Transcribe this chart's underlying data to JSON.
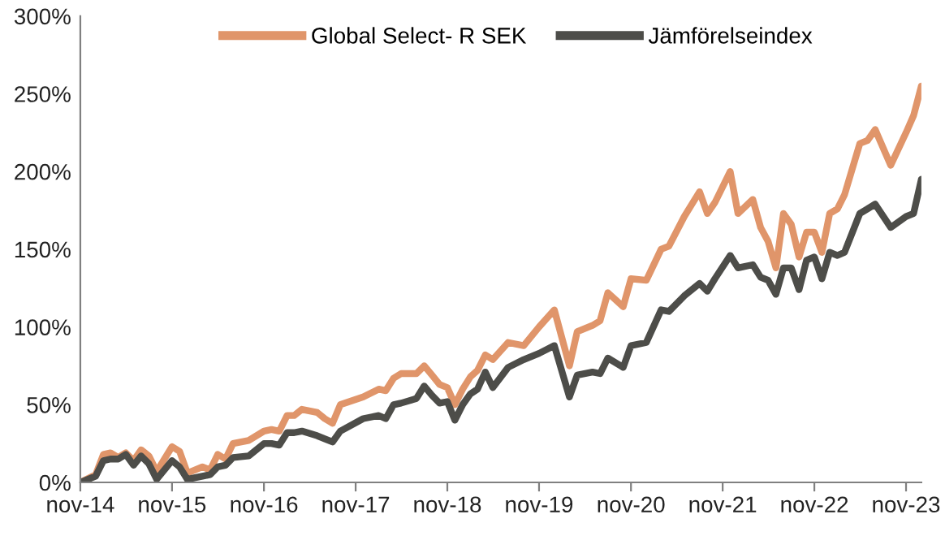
{
  "chart_data": {
    "type": "line",
    "x": [
      "2014-11",
      "2015-01",
      "2015-02",
      "2015-03",
      "2015-04",
      "2015-05",
      "2015-06",
      "2015-07",
      "2015-08",
      "2015-09",
      "2015-11",
      "2015-12",
      "2016-01",
      "2016-03",
      "2016-04",
      "2016-05",
      "2016-06",
      "2016-07",
      "2016-09",
      "2016-11",
      "2016-12",
      "2017-01",
      "2017-02",
      "2017-03",
      "2017-04",
      "2017-06",
      "2017-07",
      "2017-08",
      "2017-09",
      "2017-12",
      "2018-02",
      "2018-03",
      "2018-04",
      "2018-05",
      "2018-07",
      "2018-08",
      "2018-09",
      "2018-10",
      "2018-11",
      "2018-12",
      "2019-01",
      "2019-02",
      "2019-03",
      "2019-04",
      "2019-05",
      "2019-07",
      "2019-09",
      "2019-11",
      "2020-01",
      "2020-03",
      "2020-04",
      "2020-06",
      "2020-07",
      "2020-08",
      "2020-10",
      "2020-11",
      "2021-01",
      "2021-03",
      "2021-04",
      "2021-06",
      "2021-08",
      "2021-09",
      "2021-10",
      "2021-12",
      "2022-01",
      "2022-03",
      "2022-04",
      "2022-05",
      "2022-06",
      "2022-07",
      "2022-08",
      "2022-09",
      "2022-10",
      "2022-11",
      "2022-12",
      "2023-01",
      "2023-02",
      "2023-03",
      "2023-05",
      "2023-06",
      "2023-07",
      "2023-09",
      "2023-11",
      "2023-12",
      "2024-01"
    ],
    "series": [
      {
        "name": "Global Select- R SEK",
        "color": "#e0956a",
        "values": [
          0,
          5,
          18,
          19,
          16,
          19,
          14,
          21,
          17,
          7,
          23,
          20,
          6,
          10,
          8,
          18,
          15,
          25,
          27,
          33,
          34,
          33,
          43,
          43,
          47,
          45,
          41,
          38,
          50,
          55,
          60,
          59,
          67,
          70,
          70,
          75,
          69,
          63,
          61,
          50,
          60,
          68,
          72,
          82,
          79,
          90,
          88,
          100,
          111,
          75,
          97,
          101,
          104,
          122,
          113,
          131,
          130,
          150,
          152,
          171,
          187,
          173,
          180,
          200,
          173,
          182,
          164,
          155,
          138,
          173,
          166,
          145,
          161,
          161,
          148,
          173,
          176,
          185,
          218,
          220,
          227,
          204,
          225,
          236,
          255
        ]
      },
      {
        "name": "Jämförelseindex",
        "color": "#4d4d49",
        "values": [
          0,
          4,
          14,
          15,
          15,
          18,
          11,
          17,
          12,
          2,
          14,
          10,
          2,
          4,
          5,
          10,
          11,
          16,
          17,
          25,
          25,
          24,
          32,
          32,
          33,
          30,
          28,
          26,
          33,
          41,
          43,
          41,
          50,
          51,
          54,
          62,
          56,
          51,
          52,
          40,
          50,
          57,
          60,
          71,
          61,
          74,
          79,
          83,
          88,
          55,
          69,
          71,
          70,
          80,
          74,
          88,
          90,
          111,
          110,
          120,
          128,
          123,
          131,
          146,
          138,
          140,
          132,
          130,
          121,
          138,
          138,
          124,
          143,
          145,
          131,
          148,
          146,
          148,
          173,
          176,
          179,
          164,
          171,
          173,
          195
        ]
      }
    ],
    "xlim": [
      "2014-11",
      "2024-01"
    ],
    "xticks": [
      {
        "value": "2014-11",
        "label": "nov-14"
      },
      {
        "value": "2015-11",
        "label": "nov-15"
      },
      {
        "value": "2016-11",
        "label": "nov-16"
      },
      {
        "value": "2017-11",
        "label": "nov-17"
      },
      {
        "value": "2018-11",
        "label": "nov-18"
      },
      {
        "value": "2019-11",
        "label": "nov-19"
      },
      {
        "value": "2020-11",
        "label": "nov-20"
      },
      {
        "value": "2021-11",
        "label": "nov-21"
      },
      {
        "value": "2022-11",
        "label": "nov-22"
      },
      {
        "value": "2023-11",
        "label": "nov-23"
      }
    ],
    "ylim": [
      0,
      300
    ],
    "yticks": [
      {
        "value": 0,
        "label": "0%"
      },
      {
        "value": 50,
        "label": "50%"
      },
      {
        "value": 100,
        "label": "100%"
      },
      {
        "value": 150,
        "label": "150%"
      },
      {
        "value": 200,
        "label": "200%"
      },
      {
        "value": 250,
        "label": "250%"
      },
      {
        "value": 300,
        "label": "300%"
      }
    ],
    "grid": false,
    "legend": "top",
    "marker": "none",
    "line_style": "solid"
  }
}
